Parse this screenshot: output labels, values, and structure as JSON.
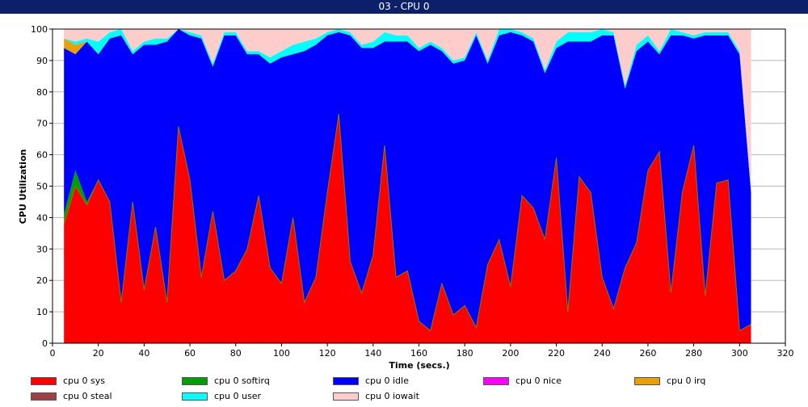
{
  "window": {
    "title": "03 - CPU 0"
  },
  "chart_data": {
    "type": "area",
    "stacked": true,
    "title": "03 - CPU 0",
    "xlabel": "Time (secs.)",
    "ylabel": "CPU Utilization",
    "xlim": [
      0,
      320
    ],
    "ylim": [
      0,
      100
    ],
    "x_ticks": [
      0,
      20,
      40,
      60,
      80,
      100,
      120,
      140,
      160,
      180,
      200,
      220,
      240,
      260,
      280,
      300,
      320
    ],
    "y_ticks": [
      0,
      10,
      20,
      30,
      40,
      50,
      60,
      70,
      80,
      90,
      100
    ],
    "grid": "horizontal",
    "legend_position": "bottom",
    "x": [
      5,
      10,
      15,
      20,
      25,
      30,
      35,
      40,
      45,
      50,
      55,
      60,
      65,
      70,
      75,
      80,
      85,
      90,
      95,
      100,
      105,
      110,
      115,
      120,
      125,
      130,
      135,
      140,
      145,
      150,
      155,
      160,
      165,
      170,
      175,
      180,
      185,
      190,
      195,
      200,
      205,
      210,
      215,
      220,
      225,
      230,
      235,
      240,
      245,
      250,
      255,
      260,
      265,
      270,
      275,
      280,
      285,
      290,
      295,
      300,
      305
    ],
    "series": [
      {
        "name": "cpu 0 sys",
        "color": "#ff0000",
        "values": [
          38,
          50,
          44,
          52,
          45,
          13,
          45,
          17,
          37,
          13,
          69,
          52,
          21,
          42,
          20,
          23,
          30,
          47,
          24,
          19,
          40,
          13,
          21,
          48,
          73,
          26,
          16,
          28,
          63,
          21,
          23,
          7,
          4,
          19,
          9,
          12,
          5,
          25,
          33,
          18,
          47,
          43,
          33,
          59,
          10,
          53,
          48,
          21,
          11,
          24,
          32,
          55,
          61,
          16,
          48,
          63,
          15,
          51,
          52,
          4,
          6
        ]
      },
      {
        "name": "cpu 0 softirq",
        "color": "#00a000",
        "values": [
          3,
          5,
          1,
          0,
          0,
          0,
          0,
          0,
          0,
          0,
          0,
          0,
          0,
          0,
          0,
          0,
          0,
          0,
          0,
          0,
          0,
          0,
          0,
          0,
          0,
          0,
          0,
          0,
          0,
          0,
          0,
          0,
          0,
          0,
          0,
          0,
          0,
          0,
          0,
          0,
          0,
          0,
          0,
          0,
          0,
          0,
          0,
          0,
          0,
          0,
          0,
          0,
          0,
          0,
          0,
          0,
          0,
          0,
          0,
          0,
          0
        ]
      },
      {
        "name": "cpu 0 idle",
        "color": "#0000ff",
        "values": [
          53,
          37,
          51,
          40,
          52,
          85,
          47,
          78,
          58,
          83,
          31,
          46,
          76,
          46,
          78,
          75,
          62,
          45,
          65,
          72,
          52,
          80,
          74,
          50,
          26,
          72,
          78,
          66,
          33,
          75,
          73,
          86,
          91,
          74,
          80,
          78,
          93,
          64,
          65,
          81,
          51,
          53,
          53,
          35,
          86,
          43,
          48,
          77,
          87,
          57,
          61,
          41,
          31,
          82,
          50,
          34,
          83,
          47,
          46,
          88,
          42
        ]
      },
      {
        "name": "cpu 0 nice",
        "color": "#ff00ff",
        "values": [
          0,
          0,
          0,
          0,
          0,
          0,
          0,
          0,
          0,
          0,
          0,
          0,
          0,
          0,
          0,
          0,
          0,
          0,
          0,
          0,
          0,
          0,
          0,
          0,
          0,
          0,
          0,
          0,
          0,
          0,
          0,
          0,
          0,
          0,
          0,
          0,
          0,
          0,
          0,
          0,
          0,
          0,
          0,
          0,
          0,
          0,
          0,
          0,
          0,
          0,
          0,
          0,
          0,
          0,
          0,
          0,
          0,
          0,
          0,
          0,
          0
        ]
      },
      {
        "name": "cpu 0 irq",
        "color": "#e8a000",
        "values": [
          3,
          3,
          0,
          0,
          0,
          0,
          0,
          0,
          0,
          0,
          0,
          0,
          0,
          0,
          0,
          0,
          0,
          0,
          0,
          0,
          0,
          0,
          0,
          0,
          0,
          0,
          0,
          0,
          0,
          0,
          0,
          0,
          0,
          0,
          0,
          0,
          0,
          0,
          0,
          0,
          0,
          0,
          0,
          0,
          0,
          0,
          0,
          0,
          0,
          0,
          0,
          0,
          0,
          0,
          0,
          0,
          0,
          0,
          0,
          0,
          0
        ]
      },
      {
        "name": "cpu 0 steal",
        "color": "#a04040",
        "values": [
          0,
          0,
          0,
          0,
          0,
          0,
          0,
          0,
          0,
          0,
          0,
          0,
          0,
          0,
          0,
          0,
          0,
          0,
          0,
          0,
          0,
          0,
          0,
          0,
          0,
          0,
          0,
          0,
          0,
          0,
          0,
          0,
          0,
          0,
          0,
          0,
          0,
          0,
          0,
          0,
          0,
          0,
          0,
          0,
          0,
          0,
          0,
          0,
          0,
          0,
          0,
          0,
          0,
          0,
          0,
          0,
          0,
          0,
          0,
          0,
          0
        ]
      },
      {
        "name": "cpu 0 user",
        "color": "#00ffff",
        "values": [
          0,
          1,
          1,
          4,
          2,
          2,
          1,
          1,
          2,
          1,
          0,
          1,
          1,
          1,
          1,
          1,
          1,
          1,
          2,
          2,
          3,
          3,
          2,
          1,
          1,
          1,
          1,
          2,
          3,
          2,
          2,
          1,
          1,
          1,
          1,
          1,
          1,
          1,
          2,
          1,
          1,
          1,
          1,
          2,
          3,
          3,
          3,
          2,
          1,
          1,
          2,
          2,
          1,
          2,
          1,
          1,
          1,
          1,
          1,
          1,
          1
        ]
      },
      {
        "name": "cpu 0 iowait",
        "color": "#ffcccc",
        "values": [
          3,
          4,
          3,
          4,
          1,
          0,
          7,
          4,
          3,
          3,
          0,
          1,
          2,
          11,
          1,
          1,
          7,
          7,
          9,
          7,
          5,
          4,
          3,
          1,
          0,
          1,
          5,
          4,
          1,
          2,
          2,
          6,
          4,
          6,
          10,
          9,
          1,
          10,
          0,
          0,
          1,
          3,
          13,
          4,
          1,
          1,
          1,
          0,
          1,
          18,
          5,
          2,
          7,
          0,
          1,
          2,
          1,
          1,
          1,
          7,
          51
        ]
      }
    ]
  }
}
